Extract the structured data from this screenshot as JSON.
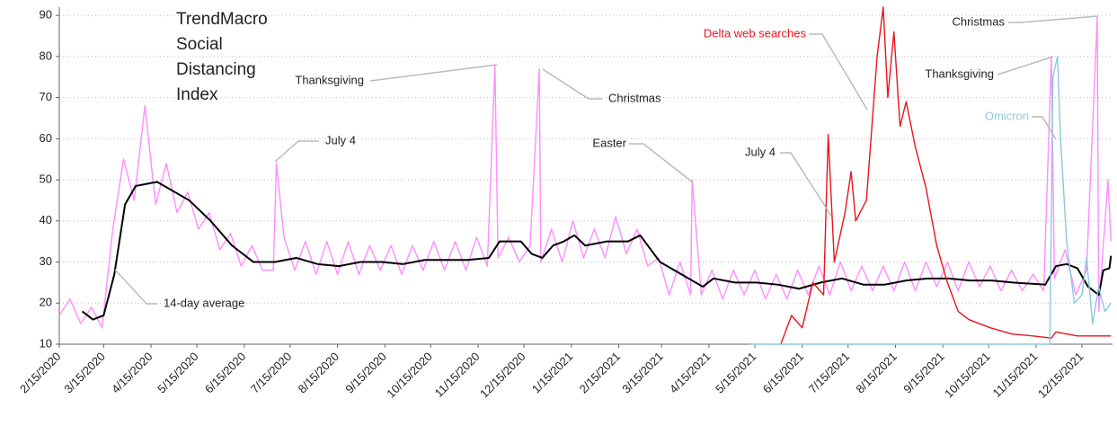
{
  "chart_data": {
    "type": "line",
    "title_lines": [
      "TrendMacro",
      "Social",
      "Distancing",
      "Index"
    ],
    "xlim": [
      "2/15/2020",
      "1/4/2022"
    ],
    "ylim": [
      10,
      92
    ],
    "yticks": [
      10,
      20,
      30,
      40,
      50,
      60,
      70,
      80,
      90
    ],
    "grid": true,
    "xticks": [
      "2/15/2020",
      "3/15/2020",
      "4/15/2020",
      "5/15/2020",
      "6/15/2020",
      "7/15/2020",
      "8/15/2020",
      "9/15/2020",
      "10/15/2020",
      "11/15/2020",
      "12/15/2020",
      "1/15/2021",
      "2/15/2021",
      "3/15/2021",
      "4/15/2021",
      "5/15/2021",
      "6/15/2021",
      "7/15/2021",
      "8/15/2021",
      "9/15/2021",
      "10/15/2021",
      "11/15/2021",
      "12/15/2021"
    ],
    "annotations": [
      {
        "text": "14-day average"
      },
      {
        "text": "July 4"
      },
      {
        "text": "Thanksgiving"
      },
      {
        "text": "Christmas"
      },
      {
        "text": "Easter"
      },
      {
        "text": "July 4"
      },
      {
        "text": "Thanksgiving"
      },
      {
        "text": "Christmas"
      },
      {
        "text": "Omicron",
        "color": "#8cc8dc"
      },
      {
        "text": "Delta web searches",
        "color": "#e8141c"
      }
    ],
    "series": [
      {
        "color": "#ff8cff",
        "x": [
          "2/15/2020",
          "2/22/2020",
          "2/29/2020",
          "3/7/2020",
          "3/14/2020",
          "3/21/2020",
          "3/28/2020",
          "4/4/2020",
          "4/11/2020",
          "4/18/2020",
          "4/25/2020",
          "5/2/2020",
          "5/9/2020",
          "5/16/2020",
          "5/23/2020",
          "5/30/2020",
          "6/6/2020",
          "6/13/2020",
          "6/20/2020",
          "6/27/2020",
          "7/4/2020",
          "7/6/2020",
          "7/11/2020",
          "7/18/2020",
          "7/25/2020",
          "8/1/2020",
          "8/8/2020",
          "8/15/2020",
          "8/22/2020",
          "8/29/2020",
          "9/5/2020",
          "9/12/2020",
          "9/19/2020",
          "9/26/2020",
          "10/3/2020",
          "10/10/2020",
          "10/17/2020",
          "10/24/2020",
          "10/31/2020",
          "11/7/2020",
          "11/14/2020",
          "11/21/2020",
          "11/26/2020",
          "11/28/2020",
          "12/5/2020",
          "12/12/2020",
          "12/19/2020",
          "12/25/2020",
          "12/26/2020",
          "1/2/2021",
          "1/9/2021",
          "1/16/2021",
          "1/23/2021",
          "1/30/2021",
          "2/6/2021",
          "2/13/2021",
          "2/20/2021",
          "2/27/2021",
          "3/6/2021",
          "3/13/2021",
          "3/20/2021",
          "3/27/2021",
          "4/3/2021",
          "4/4/2021",
          "4/10/2021",
          "4/17/2021",
          "4/24/2021",
          "5/1/2021",
          "5/8/2021",
          "5/15/2021",
          "5/22/2021",
          "5/29/2021",
          "6/5/2021",
          "6/12/2021",
          "6/19/2021",
          "6/26/2021",
          "7/3/2021",
          "7/10/2021",
          "7/17/2021",
          "7/24/2021",
          "7/31/2021",
          "8/7/2021",
          "8/14/2021",
          "8/21/2021",
          "8/28/2021",
          "9/4/2021",
          "9/11/2021",
          "9/18/2021",
          "9/25/2021",
          "10/2/2021",
          "10/9/2021",
          "10/16/2021",
          "10/23/2021",
          "10/30/2021",
          "11/6/2021",
          "11/13/2021",
          "11/20/2021",
          "11/25/2021",
          "11/27/2021",
          "12/4/2021",
          "12/11/2021",
          "12/18/2021",
          "12/25/2021",
          "12/26/2021",
          "1/1/2022",
          "1/3/2022"
        ],
        "values": [
          17,
          21,
          15,
          19,
          14,
          38,
          55,
          45,
          68,
          44,
          54,
          42,
          47,
          38,
          42,
          33,
          37,
          29,
          34,
          28,
          28,
          54,
          36,
          28,
          35,
          27,
          35,
          27,
          35,
          27,
          34,
          28,
          34,
          27,
          34,
          28,
          35,
          28,
          35,
          28,
          36,
          29,
          78,
          31,
          36,
          30,
          34,
          77,
          30,
          38,
          30,
          40,
          31,
          38,
          31,
          41,
          32,
          38,
          29,
          31,
          22,
          30,
          22,
          50,
          22,
          28,
          21,
          28,
          22,
          28,
          21,
          27,
          21,
          28,
          22,
          29,
          22,
          30,
          23,
          29,
          23,
          29,
          23,
          30,
          23,
          30,
          24,
          30,
          23,
          30,
          24,
          29,
          23,
          28,
          23,
          27,
          23,
          80,
          26,
          33,
          22,
          28,
          89.5,
          18,
          50,
          35
        ]
      },
      {
        "color": "#000000",
        "x": [
          "3/1/2020",
          "3/8/2020",
          "3/15/2020",
          "3/22/2020",
          "3/29/2020",
          "4/5/2020",
          "4/12/2020",
          "4/19/2020",
          "4/26/2020",
          "5/10/2020",
          "5/24/2020",
          "6/7/2020",
          "6/21/2020",
          "7/5/2020",
          "7/19/2020",
          "8/2/2020",
          "8/16/2020",
          "8/30/2020",
          "9/13/2020",
          "9/27/2020",
          "10/11/2020",
          "10/25/2020",
          "11/8/2020",
          "11/22/2020",
          "11/29/2020",
          "12/13/2020",
          "12/20/2020",
          "12/27/2020",
          "1/3/2021",
          "1/10/2021",
          "1/17/2021",
          "1/24/2021",
          "2/7/2021",
          "2/21/2021",
          "3/1/2021",
          "3/14/2021",
          "3/28/2021",
          "4/11/2021",
          "4/18/2021",
          "5/2/2021",
          "5/16/2021",
          "5/30/2021",
          "6/13/2021",
          "6/27/2021",
          "7/11/2021",
          "7/25/2021",
          "8/8/2021",
          "8/22/2021",
          "9/5/2021",
          "9/19/2021",
          "10/3/2021",
          "10/17/2021",
          "10/31/2021",
          "11/21/2021",
          "11/28/2021",
          "12/5/2021",
          "12/12/2021",
          "12/19/2021",
          "12/26/2021",
          "12/29/2021",
          "1/2/2022",
          "1/3/2022"
        ],
        "values": [
          18,
          16,
          17,
          27,
          44,
          48.5,
          49,
          49.5,
          48,
          45,
          40,
          34,
          30,
          30,
          31,
          29.5,
          29,
          30,
          30,
          29.5,
          30.5,
          30.5,
          30.5,
          31,
          35,
          35,
          32,
          31,
          34,
          35,
          36.5,
          34,
          35,
          35,
          36.5,
          30,
          27,
          24,
          26,
          25,
          25,
          24.5,
          23.5,
          25,
          26,
          24.5,
          24.5,
          25.5,
          26,
          26,
          25.5,
          25.5,
          25,
          24.5,
          29,
          29.5,
          28.5,
          24,
          22,
          28,
          28.5,
          31.5
        ]
      },
      {
        "color": "#e8141c",
        "x": [
          "6/1/2021",
          "6/8/2021",
          "6/15/2021",
          "6/22/2021",
          "6/29/2021",
          "7/2/2021",
          "7/6/2021",
          "7/13/2021",
          "7/17/2021",
          "7/20/2021",
          "7/27/2021",
          "8/3/2021",
          "8/7/2021",
          "8/10/2021",
          "8/14/2021",
          "8/18/2021",
          "8/22/2021",
          "8/28/2021",
          "9/4/2021",
          "9/11/2021",
          "9/18/2021",
          "9/25/2021",
          "10/2/2021",
          "10/16/2021",
          "10/30/2021",
          "11/13/2021",
          "11/25/2021",
          "11/28/2021",
          "12/12/2021",
          "1/3/2022"
        ],
        "values": [
          10,
          17,
          14,
          25,
          22,
          61,
          30,
          42,
          52,
          40,
          45,
          80,
          92,
          70,
          86,
          63,
          69,
          58,
          48,
          34,
          25,
          18,
          16,
          14,
          12.5,
          12,
          11.5,
          13,
          12,
          12
        ]
      },
      {
        "color": "#8cc8dc",
        "x": [
          "5/12/2021",
          "11/24/2021",
          "11/26/2021",
          "11/29/2021",
          "12/1/2021",
          "12/5/2021",
          "12/10/2021",
          "12/15/2021",
          "12/18/2021",
          "12/22/2021",
          "12/26/2021",
          "12/30/2021",
          "1/3/2022"
        ],
        "values": [
          10,
          10,
          75,
          80,
          60,
          35,
          20,
          22,
          31,
          15,
          24,
          18,
          20
        ]
      }
    ]
  }
}
